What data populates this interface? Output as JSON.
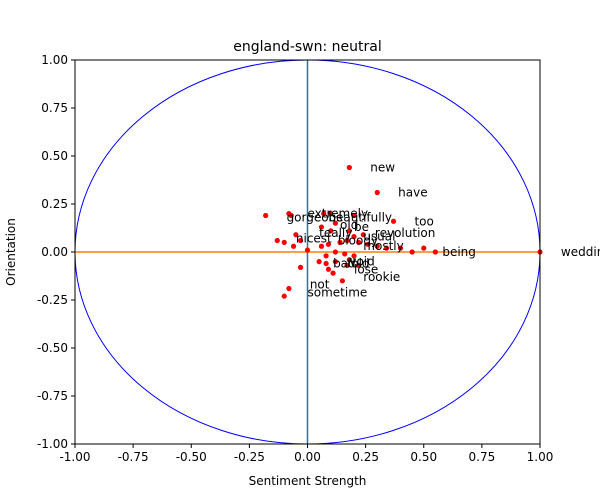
{
  "chart_data": {
    "type": "scatter",
    "title": "england-swn: neutral",
    "xlabel": "Sentiment Strength",
    "ylabel": "Orientation",
    "xlim": [
      -1.0,
      1.0
    ],
    "ylim": [
      -1.0,
      1.0
    ],
    "xticks": [
      "-1.00",
      "-0.75",
      "-0.50",
      "-0.25",
      "0.00",
      "0.25",
      "0.50",
      "0.75",
      "1.00"
    ],
    "yticks": [
      "-1.00",
      "-0.75",
      "-0.50",
      "-0.25",
      "0.00",
      "0.25",
      "0.50",
      "0.75",
      "1.00"
    ],
    "grid": false,
    "colors": {
      "points": "#ff0000",
      "circle": "#0000ff",
      "horizontal_line": "#ff7f0e",
      "vertical_line": "#1f77b4"
    },
    "points": [
      {
        "x": 0.18,
        "y": 0.44
      },
      {
        "x": 0.3,
        "y": 0.31
      },
      {
        "x": 0.37,
        "y": 0.16
      },
      {
        "x": -0.18,
        "y": 0.19
      },
      {
        "x": -0.08,
        "y": 0.2
      },
      {
        "x": -0.07,
        "y": 0.19
      },
      {
        "x": 0.07,
        "y": 0.2
      },
      {
        "x": 0.1,
        "y": 0.2
      },
      {
        "x": 0.2,
        "y": 0.19
      },
      {
        "x": 0.12,
        "y": 0.15
      },
      {
        "x": 0.06,
        "y": 0.13
      },
      {
        "x": 0.1,
        "y": 0.11
      },
      {
        "x": 0.18,
        "y": 0.11
      },
      {
        "x": 0.24,
        "y": 0.09
      },
      {
        "x": 0.2,
        "y": 0.08
      },
      {
        "x": -0.05,
        "y": 0.09
      },
      {
        "x": -0.03,
        "y": 0.06
      },
      {
        "x": -0.13,
        "y": 0.06
      },
      {
        "x": -0.1,
        "y": 0.05
      },
      {
        "x": -0.06,
        "y": 0.03
      },
      {
        "x": 0.0,
        "y": 0.01
      },
      {
        "x": 0.06,
        "y": 0.03
      },
      {
        "x": 0.09,
        "y": 0.04
      },
      {
        "x": 0.14,
        "y": 0.05
      },
      {
        "x": 0.17,
        "y": 0.06
      },
      {
        "x": 0.22,
        "y": 0.05
      },
      {
        "x": 0.26,
        "y": 0.04
      },
      {
        "x": 0.3,
        "y": 0.03
      },
      {
        "x": 0.34,
        "y": 0.02
      },
      {
        "x": 0.4,
        "y": 0.02
      },
      {
        "x": 0.45,
        "y": 0.0
      },
      {
        "x": 0.5,
        "y": 0.02
      },
      {
        "x": 0.55,
        "y": 0.0
      },
      {
        "x": 0.12,
        "y": 0.0
      },
      {
        "x": 0.16,
        "y": -0.01
      },
      {
        "x": 0.2,
        "y": -0.02
      },
      {
        "x": 0.08,
        "y": -0.02
      },
      {
        "x": 0.05,
        "y": -0.05
      },
      {
        "x": 0.08,
        "y": -0.06
      },
      {
        "x": 0.12,
        "y": -0.05
      },
      {
        "x": 0.18,
        "y": -0.04
      },
      {
        "x": 0.22,
        "y": -0.07
      },
      {
        "x": 0.17,
        "y": -0.07
      },
      {
        "x": 0.09,
        "y": -0.09
      },
      {
        "x": 0.11,
        "y": -0.11
      },
      {
        "x": -0.03,
        "y": -0.08
      },
      {
        "x": 0.15,
        "y": -0.15
      },
      {
        "x": -0.08,
        "y": -0.19
      },
      {
        "x": -0.1,
        "y": -0.23
      },
      {
        "x": 1.0,
        "y": 0.0
      }
    ],
    "annotations": [
      {
        "text": "new",
        "x": 0.27,
        "y": 0.44
      },
      {
        "text": "have",
        "x": 0.39,
        "y": 0.31
      },
      {
        "text": "extremely",
        "x": 0.0,
        "y": 0.2
      },
      {
        "text": "gorgeous",
        "x": -0.09,
        "y": 0.18
      },
      {
        "text": "beautifully",
        "x": 0.09,
        "y": 0.18
      },
      {
        "text": "too",
        "x": 0.46,
        "y": 0.16
      },
      {
        "text": "old",
        "x": 0.14,
        "y": 0.14
      },
      {
        "text": "be",
        "x": 0.2,
        "y": 0.13
      },
      {
        "text": "revolution",
        "x": 0.29,
        "y": 0.1
      },
      {
        "text": "teally",
        "x": 0.05,
        "y": 0.1
      },
      {
        "text": "usual",
        "x": 0.24,
        "y": 0.08
      },
      {
        "text": "nicest",
        "x": -0.05,
        "y": 0.07
      },
      {
        "text": "bloody",
        "x": 0.13,
        "y": 0.06
      },
      {
        "text": "mostly",
        "x": 0.24,
        "y": 0.03
      },
      {
        "text": "wedding",
        "x": 1.09,
        "y": 0.0
      },
      {
        "text": "being",
        "x": 0.58,
        "y": 0.0
      },
      {
        "text": "void",
        "x": 0.18,
        "y": -0.05
      },
      {
        "text": "bad",
        "x": 0.11,
        "y": -0.06
      },
      {
        "text": "fold",
        "x": 0.17,
        "y": -0.06
      },
      {
        "text": "lose",
        "x": 0.2,
        "y": -0.09
      },
      {
        "text": "rookie",
        "x": 0.24,
        "y": -0.13
      },
      {
        "text": "not",
        "x": 0.01,
        "y": -0.17
      },
      {
        "text": "sometime",
        "x": 0.0,
        "y": -0.21
      }
    ]
  }
}
